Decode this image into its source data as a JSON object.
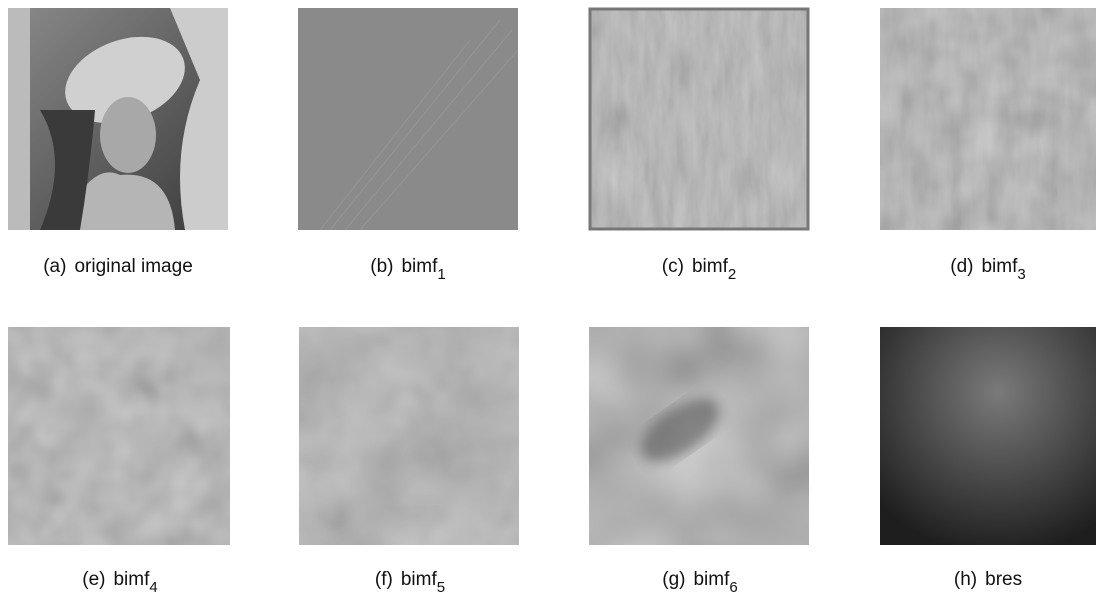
{
  "panels": [
    {
      "letter": "(a)",
      "text": "original image"
    },
    {
      "letter": "(b)",
      "text": "bimf",
      "sub": "1"
    },
    {
      "letter": "(c)",
      "text": "bimf",
      "sub": "2"
    },
    {
      "letter": "(d)",
      "text": "bimf",
      "sub": "3"
    },
    {
      "letter": "(e)",
      "text": "bimf",
      "sub": "4"
    },
    {
      "letter": "(f)",
      "text": "bimf",
      "sub": "5"
    },
    {
      "letter": "(g)",
      "text": "bimf",
      "sub": "6"
    },
    {
      "letter": "(h)",
      "text": "bres"
    }
  ]
}
